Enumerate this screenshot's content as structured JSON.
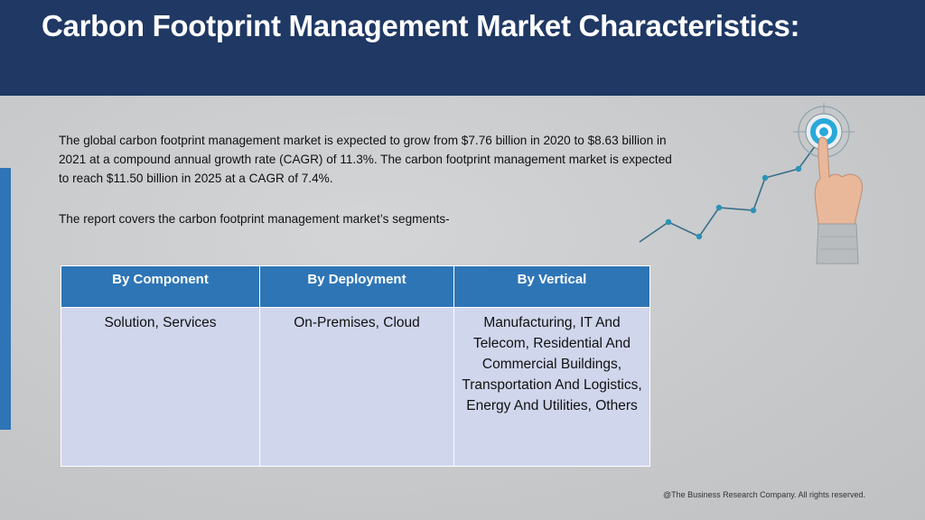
{
  "header": {
    "title": "Carbon Footprint Management Market Characteristics:"
  },
  "body": {
    "paragraph1": "The global carbon footprint management market is expected to grow from $7.76 billion in 2020 to $8.63 billion in 2021 at a compound annual growth rate (CAGR) of 11.3%. The carbon footprint management market is expected to reach $11.50 billion in 2025 at a CAGR of 7.4%.",
    "paragraph2": "The report covers the carbon footprint management market’s segments-"
  },
  "table": {
    "headers": [
      "By Component",
      "By Deployment",
      "By Vertical"
    ],
    "cells": [
      "Solution, Services",
      "On-Premises, Cloud",
      "Manufacturing, IT And Telecom, Residential And Commercial Buildings, Transportation And Logistics, Energy And Utilities, Others"
    ]
  },
  "footer": {
    "copyright": "@The Business Research Company. All rights reserved."
  },
  "colors": {
    "header_bg": "#1f3864",
    "table_header": "#2e75b6",
    "table_cell": "#d0d6ec",
    "accent": "#2e75b6",
    "target": "#29a8d9"
  },
  "illustration": {
    "icons": [
      "growth-line-icon",
      "target-icon",
      "pointing-hand-icon"
    ]
  }
}
